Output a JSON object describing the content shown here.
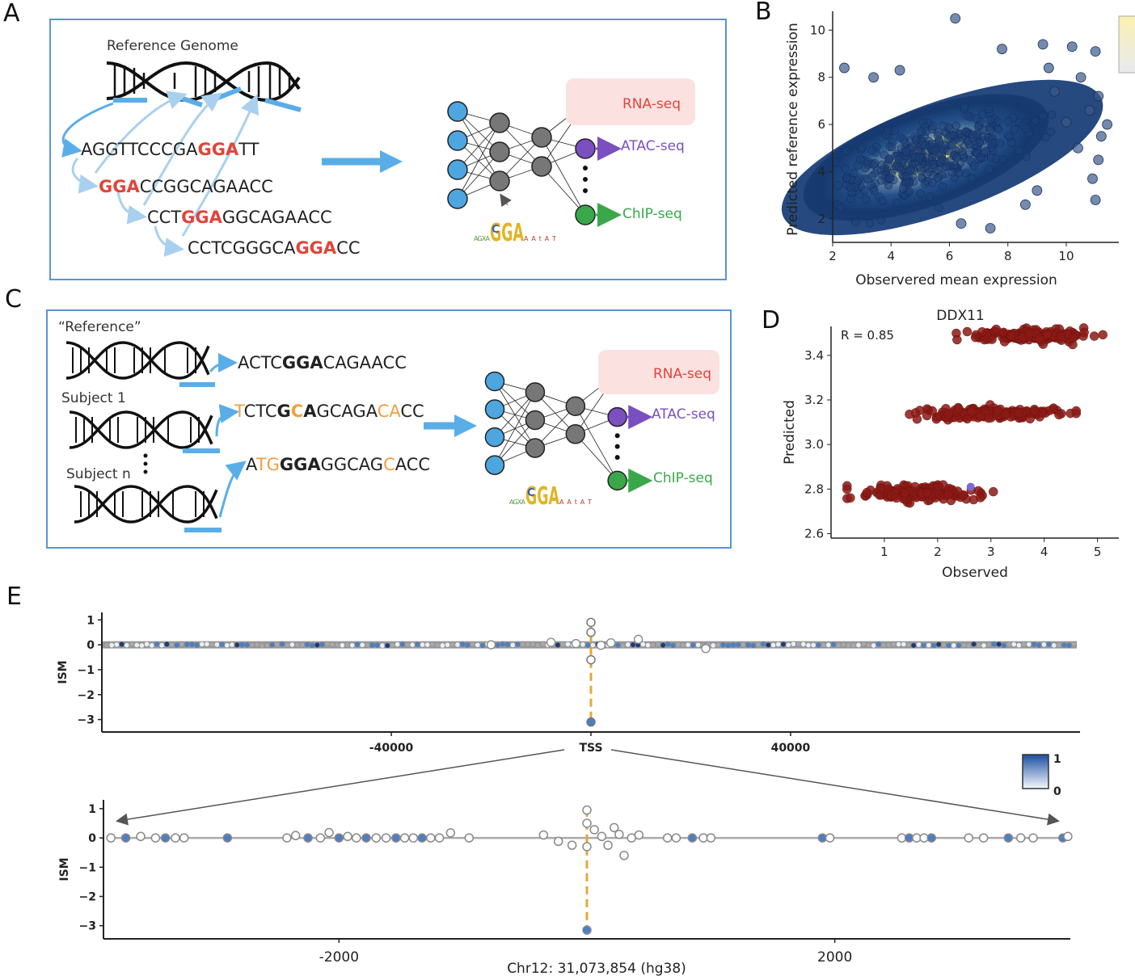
{
  "panels": {
    "a": "A",
    "b": "B",
    "c": "C",
    "d": "D",
    "e": "E"
  },
  "panel_a": {
    "title": "Reference Genome",
    "seq1_pre": "AGGTTCCCGA",
    "seq1_hi": "GGA",
    "seq1_post": "TT",
    "seq2_hi": "GGA",
    "seq2_post": "CCGGCAGAACC",
    "seq3_pre": "CCT",
    "seq3_hi": "GGA",
    "seq3_post": "GGCAGAACC",
    "seq4_pre": "CCTCGGGCA",
    "seq4_hi": "GGA",
    "seq4_post": "CC",
    "outputs": [
      "RNA-seq",
      "ATAC-seq",
      "ChIP-seq"
    ],
    "motif": "GGA"
  },
  "panel_c": {
    "reference_label": "“Reference”",
    "subject1_label": "Subject 1",
    "subjectn_label": "Subject n",
    "ref_seq": {
      "p1": "ACTC",
      "b1": "GGA",
      "p2": "CAGAACC"
    },
    "s1_seq": {
      "o1": "T",
      "p1": "CTC",
      "b1": "G",
      "o2": "C",
      "b2": "A",
      "p2": "GCAGA",
      "o3": "CA",
      "p3": "CC"
    },
    "sn_seq": {
      "p1": "A",
      "o1": "TG",
      "b1": "GGA",
      "p2": "GGCAG",
      "o2": "C",
      "p3": "ACC"
    },
    "outputs": [
      "RNA-seq",
      "ATAC-seq",
      "ChIP-seq"
    ]
  },
  "colors": {
    "box": "#5b93d6",
    "highlight": "#e0453a",
    "variant": "#f0a040",
    "node_input": "#4da6e0",
    "node_hidden": "#777777",
    "rna": "#e0453a",
    "atac": "#7b4fc0",
    "chip": "#3aa84a",
    "scatter_d": "#8b1a15",
    "ism_fill": "#4b7fc4",
    "tss_line": "#e2a93a"
  },
  "chart_data": [
    {
      "id": "B",
      "type": "scatter",
      "xlabel": "Observered mean expression",
      "ylabel": "Predicted reference expression",
      "xlim": [
        2,
        11.8
      ],
      "ylim": [
        1,
        10.8
      ],
      "xticks": [
        "2",
        "4",
        "6",
        "8",
        "10"
      ],
      "yticks": [
        "2",
        "4",
        "6",
        "8",
        "10"
      ],
      "density_center": [
        5.2,
        4.6
      ],
      "outliers": [
        [
          6.2,
          10.5
        ],
        [
          7.8,
          9.2
        ],
        [
          9.2,
          9.4
        ],
        [
          10.2,
          9.3
        ],
        [
          11.0,
          9.1
        ],
        [
          9.4,
          8.4
        ],
        [
          10.5,
          8.0
        ],
        [
          11.1,
          7.2
        ],
        [
          10.8,
          6.6
        ],
        [
          11.4,
          6.0
        ],
        [
          11.2,
          5.5
        ],
        [
          10.4,
          5.0
        ],
        [
          11.1,
          4.5
        ],
        [
          10.9,
          3.7
        ],
        [
          11.0,
          2.8
        ],
        [
          7.4,
          1.6
        ],
        [
          2.4,
          8.4
        ],
        [
          3.4,
          8.0
        ],
        [
          4.3,
          8.3
        ],
        [
          9.6,
          7.4
        ],
        [
          10.0,
          6.1
        ],
        [
          9.0,
          3.2
        ],
        [
          8.6,
          2.6
        ],
        [
          6.4,
          1.8
        ]
      ]
    },
    {
      "id": "D",
      "type": "scatter",
      "title": "DDX11",
      "annotation": "R = 0.85",
      "xlabel": "Observed",
      "ylabel": "Predicted",
      "xlim": [
        0,
        5.4
      ],
      "ylim": [
        2.58,
        3.53
      ],
      "xticks": [
        "1",
        "2",
        "3",
        "4",
        "5"
      ],
      "yticks": [
        "2.6",
        "2.8",
        "3.0",
        "3.2",
        "3.4"
      ],
      "clusters": [
        {
          "y": 3.49,
          "x_range": [
            2.35,
            5.1
          ]
        },
        {
          "y": 3.14,
          "x_range": [
            1.3,
            4.6
          ]
        },
        {
          "y": 2.78,
          "x_range": [
            0.3,
            3.1
          ]
        }
      ]
    },
    {
      "id": "E-top",
      "type": "scatter",
      "ylabel": "ISM",
      "xlabel": "",
      "xticks": [
        "-40000",
        "TSS",
        "40000"
      ],
      "yticks": [
        "1",
        "0",
        "−1",
        "−2",
        "−3"
      ],
      "xlim": [
        -98000,
        98000
      ],
      "ylim": [
        -3.5,
        1.3
      ],
      "tss_points": [
        [
          0,
          0.9
        ],
        [
          0,
          0.5
        ],
        [
          0,
          -0.6
        ],
        [
          0,
          -3.1
        ]
      ]
    },
    {
      "id": "E-bottom",
      "type": "scatter",
      "ylabel": "ISM",
      "xlabel": "Chr12: 31,073,854 (hg38)",
      "xticks": [
        "-2000",
        "2000"
      ],
      "yticks": [
        "1",
        "0",
        "−1",
        "−2",
        "−3"
      ],
      "xlim": [
        -3900,
        3900
      ],
      "ylim": [
        -3.45,
        1.3
      ],
      "points": [
        [
          -3840,
          0
        ],
        [
          -3720,
          0
        ],
        [
          -3600,
          0.05
        ],
        [
          -3480,
          0
        ],
        [
          -3400,
          0
        ],
        [
          -3320,
          0
        ],
        [
          -3250,
          0
        ],
        [
          -2900,
          0
        ],
        [
          -2420,
          0
        ],
        [
          -2350,
          0.08
        ],
        [
          -2250,
          0
        ],
        [
          -2150,
          0
        ],
        [
          -2080,
          0.18
        ],
        [
          -2000,
          0
        ],
        [
          -1930,
          0.05
        ],
        [
          -1860,
          0
        ],
        [
          -1780,
          0
        ],
        [
          -1700,
          0
        ],
        [
          -1620,
          0
        ],
        [
          -1540,
          0
        ],
        [
          -1470,
          0
        ],
        [
          -1400,
          0
        ],
        [
          -1330,
          0
        ],
        [
          -1260,
          0
        ],
        [
          -1190,
          0
        ],
        [
          -1100,
          0.17
        ],
        [
          -950,
          0
        ],
        [
          -350,
          0.1
        ],
        [
          -230,
          -0.12
        ],
        [
          -120,
          -0.25
        ],
        [
          0,
          0.95
        ],
        [
          0,
          0.5
        ],
        [
          0,
          -0.3
        ],
        [
          60,
          0.28
        ],
        [
          120,
          0.05
        ],
        [
          170,
          -0.25
        ],
        [
          220,
          0.35
        ],
        [
          260,
          0.12
        ],
        [
          300,
          -0.6
        ],
        [
          360,
          0
        ],
        [
          420,
          0.1
        ],
        [
          650,
          0
        ],
        [
          720,
          0
        ],
        [
          850,
          0
        ],
        [
          940,
          0
        ],
        [
          1000,
          0
        ],
        [
          1900,
          0
        ],
        [
          1960,
          0
        ],
        [
          2540,
          0
        ],
        [
          2600,
          0
        ],
        [
          2660,
          0
        ],
        [
          2720,
          0
        ],
        [
          2780,
          0
        ],
        [
          3080,
          0
        ],
        [
          3200,
          0
        ],
        [
          3400,
          0
        ],
        [
          3500,
          0
        ],
        [
          3600,
          0
        ],
        [
          3840,
          0
        ],
        [
          3880,
          0.05
        ],
        [
          0,
          -3.15
        ]
      ]
    }
  ],
  "colorbar": {
    "max_label": "1",
    "min_label": "0"
  }
}
